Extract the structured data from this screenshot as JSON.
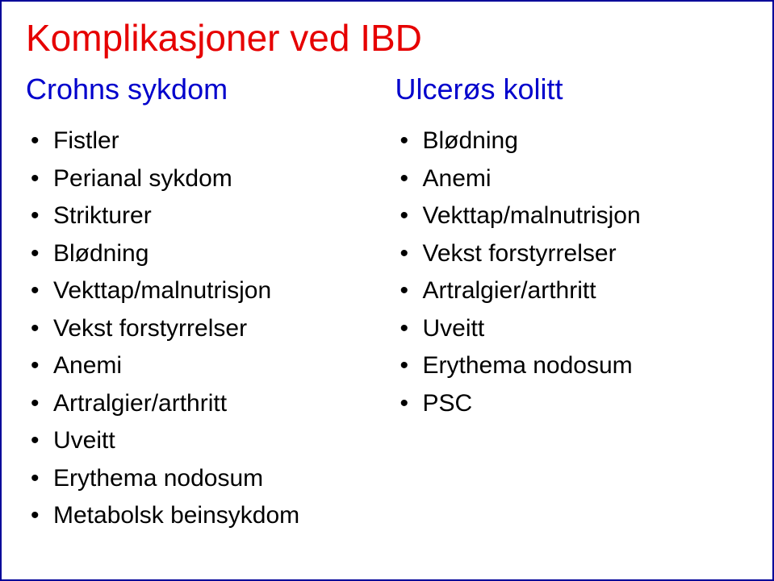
{
  "title": "Komplikasjoner ved IBD",
  "title_color": "#e60000",
  "title_fontsize": 46,
  "subhead_color": "#0000cc",
  "subhead_fontsize": 36,
  "body_color": "#000000",
  "body_fontsize": 30,
  "border_color": "#000099",
  "background_color": "#ffffff",
  "left": {
    "heading": "Crohns sykdom",
    "items": [
      "Fistler",
      "Perianal sykdom",
      "Strikturer",
      "Blødning",
      "Vekttap/malnutrisjon",
      "Vekst forstyrrelser",
      "Anemi",
      "Artralgier/arthritt",
      "Uveitt",
      "Erythema nodosum",
      "Metabolsk beinsykdom"
    ]
  },
  "right": {
    "heading": "Ulcerøs kolitt",
    "items": [
      "Blødning",
      "Anemi",
      "Vekttap/malnutrisjon",
      "Vekst forstyrrelser",
      "Artralgier/arthritt",
      "Uveitt",
      "Erythema nodosum",
      "PSC"
    ]
  }
}
